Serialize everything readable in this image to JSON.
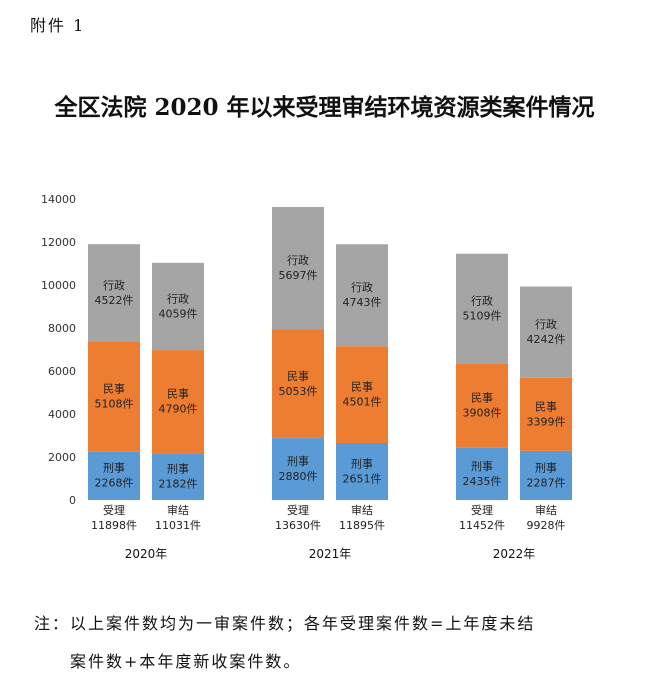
{
  "attachment_label": "附件 1",
  "title": "全区法院 2020 年以来受理审结环境资源类案件情况",
  "chart_data": {
    "type": "bar",
    "stacked": true,
    "ylim": [
      0,
      14000
    ],
    "yticks": [
      0,
      2000,
      4000,
      6000,
      8000,
      10000,
      12000,
      14000
    ],
    "grid": false,
    "unit_suffix": "件",
    "series": [
      {
        "name": "刑事",
        "color": "#5b9bd5"
      },
      {
        "name": "民事",
        "color": "#ed7d31"
      },
      {
        "name": "行政",
        "color": "#a5a5a5"
      }
    ],
    "groups": [
      {
        "year": "2020年",
        "bars": [
          {
            "label": "受理",
            "total": "11898件",
            "values": [
              2268,
              5108,
              4522
            ]
          },
          {
            "label": "审结",
            "total": "11031件",
            "values": [
              2182,
              4790,
              4059
            ]
          }
        ]
      },
      {
        "year": "2021年",
        "bars": [
          {
            "label": "受理",
            "total": "13630件",
            "values": [
              2880,
              5053,
              5697
            ]
          },
          {
            "label": "审结",
            "total": "11895件",
            "values": [
              2651,
              4501,
              4743
            ]
          }
        ]
      },
      {
        "year": "2022年",
        "bars": [
          {
            "label": "受理",
            "total": "11452件",
            "values": [
              2435,
              3908,
              5109
            ]
          },
          {
            "label": "审结",
            "total": "9928件",
            "values": [
              2287,
              3399,
              4242
            ]
          }
        ]
      }
    ]
  },
  "note": {
    "line1": "注：以上案件数均为一审案件数；各年受理案件数=上年度未结",
    "line2": "案件数+本年度新收案件数。"
  }
}
